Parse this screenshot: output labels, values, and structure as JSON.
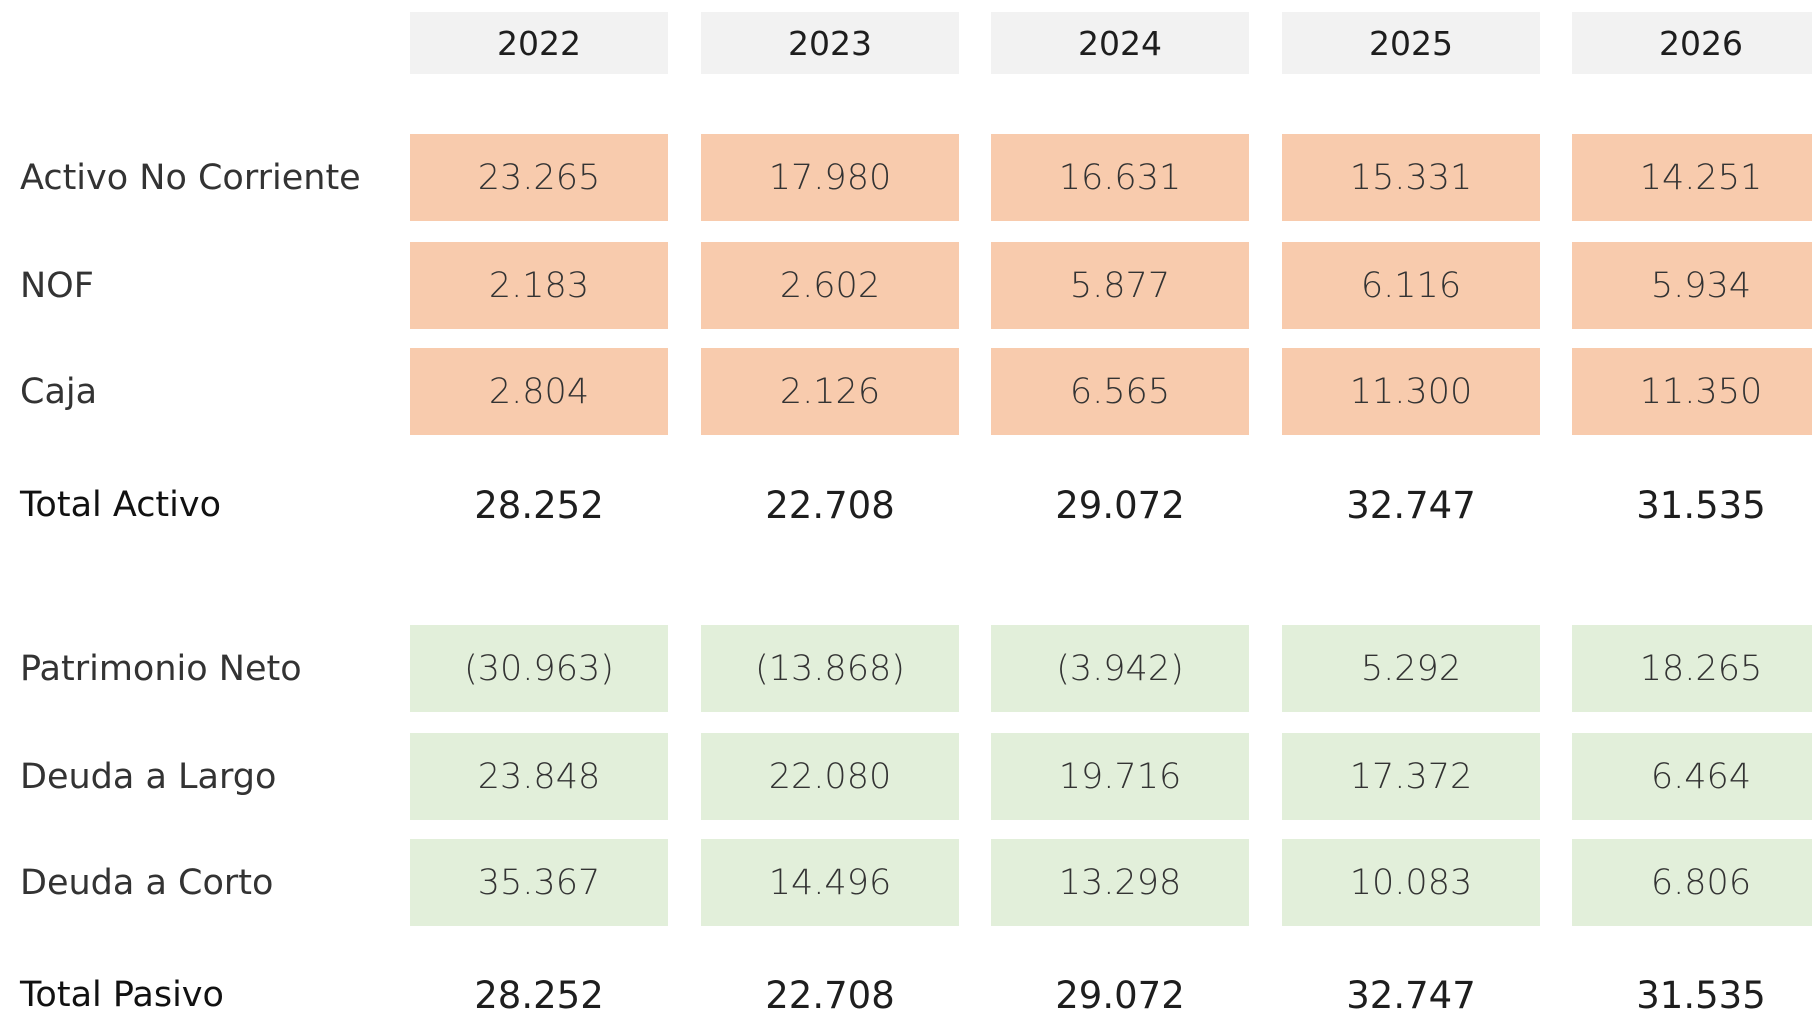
{
  "table": {
    "columns": [
      "2022",
      "2023",
      "2024",
      "2025",
      "2026"
    ],
    "sections": [
      {
        "rows": [
          {
            "label": "Activo No Corriente",
            "values": [
              "23.265",
              "17.980",
              "16.631",
              "15.331",
              "14.251"
            ]
          },
          {
            "label": "NOF",
            "values": [
              "2.183",
              "2.602",
              "5.877",
              "6.116",
              "5.934"
            ]
          },
          {
            "label": "Caja",
            "values": [
              "2.804",
              "2.126",
              "6.565",
              "11.300",
              "11.350"
            ]
          }
        ],
        "total": {
          "label": "Total Activo",
          "values": [
            "28.252",
            "22.708",
            "29.072",
            "32.747",
            "31.535"
          ]
        }
      },
      {
        "rows": [
          {
            "label": "Patrimonio Neto",
            "values": [
              "(30.963)",
              "(13.868)",
              "(3.942)",
              "5.292",
              "18.265"
            ]
          },
          {
            "label": "Deuda a Largo",
            "values": [
              "23.848",
              "22.080",
              "19.716",
              "17.372",
              "6.464"
            ]
          },
          {
            "label": "Deuda a Corto",
            "values": [
              "35.367",
              "14.496",
              "13.298",
              "10.083",
              "6.806"
            ]
          }
        ],
        "total": {
          "label": "Total Pasivo",
          "values": [
            "28.252",
            "22.708",
            "29.072",
            "32.747",
            "31.535"
          ]
        }
      }
    ]
  }
}
